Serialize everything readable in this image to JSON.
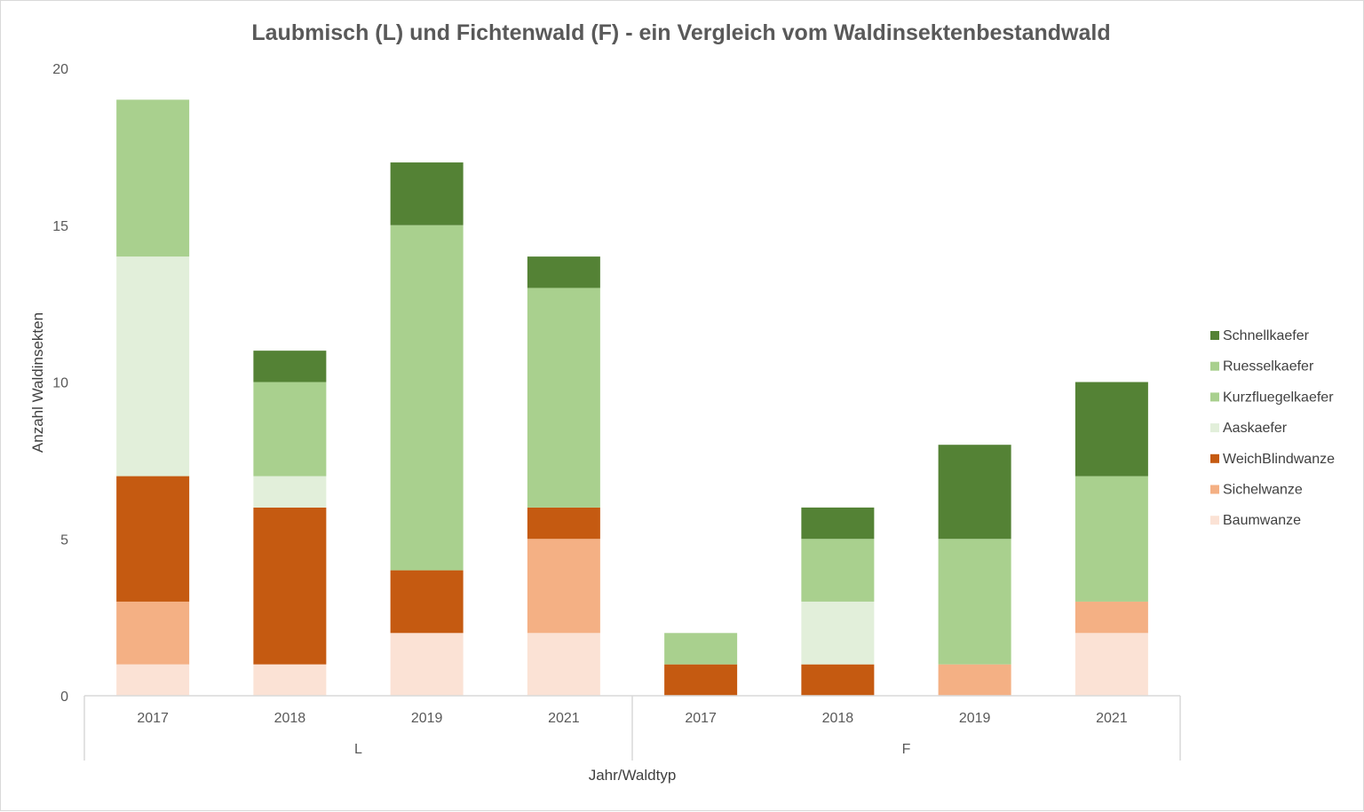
{
  "chart_data": {
    "type": "bar",
    "stacked": true,
    "title": "Laubmisch (L) und Fichtenwald (F) - ein Vergleich vom Waldinsektenbestandwald",
    "xlabel": "Jahr/Waldtyp",
    "ylabel": "Anzahl Waldinsekten",
    "ylim": [
      0,
      20
    ],
    "yticks": [
      0,
      5,
      10,
      15,
      20
    ],
    "groups": [
      {
        "label": "L",
        "categories": [
          "2017",
          "2018",
          "2019",
          "2021"
        ]
      },
      {
        "label": "F",
        "categories": [
          "2017",
          "2018",
          "2019",
          "2021"
        ]
      }
    ],
    "categories": [
      "2017",
      "2018",
      "2019",
      "2021",
      "2017",
      "2018",
      "2019",
      "2021"
    ],
    "series": [
      {
        "name": "Baumwanze",
        "color": "#fbe2d5",
        "values": [
          1,
          1,
          2,
          2,
          0,
          0,
          0,
          2
        ]
      },
      {
        "name": "Sichelwanze",
        "color": "#f4b084",
        "values": [
          2,
          0,
          0,
          3,
          0,
          0,
          1,
          1
        ]
      },
      {
        "name": "WeichBlindwanze",
        "color": "#c55a11",
        "values": [
          4,
          5,
          2,
          1,
          1,
          1,
          0,
          0
        ]
      },
      {
        "name": "Aaskaefer",
        "color": "#e2efda",
        "values": [
          7,
          1,
          0,
          0,
          0,
          2,
          0,
          0
        ]
      },
      {
        "name": "Kurzfluegelkaefer",
        "color": "#a9d08e",
        "values": [
          5,
          0,
          11,
          7,
          1,
          2,
          4,
          4
        ]
      },
      {
        "name": "Ruesselkaefer",
        "color": "#a9d08e",
        "values": [
          0,
          3,
          0,
          0,
          0,
          0,
          0,
          0
        ]
      },
      {
        "name": "Schnellkaefer",
        "color": "#548235",
        "values": [
          0,
          1,
          2,
          1,
          0,
          1,
          3,
          3
        ]
      }
    ],
    "legend_position": "right",
    "legend_order": [
      "Schnellkaefer",
      "Ruesselkaefer",
      "Kurzfluegelkaefer",
      "Aaskaefer",
      "WeichBlindwanze",
      "Sichelwanze",
      "Baumwanze"
    ],
    "grid": false
  }
}
